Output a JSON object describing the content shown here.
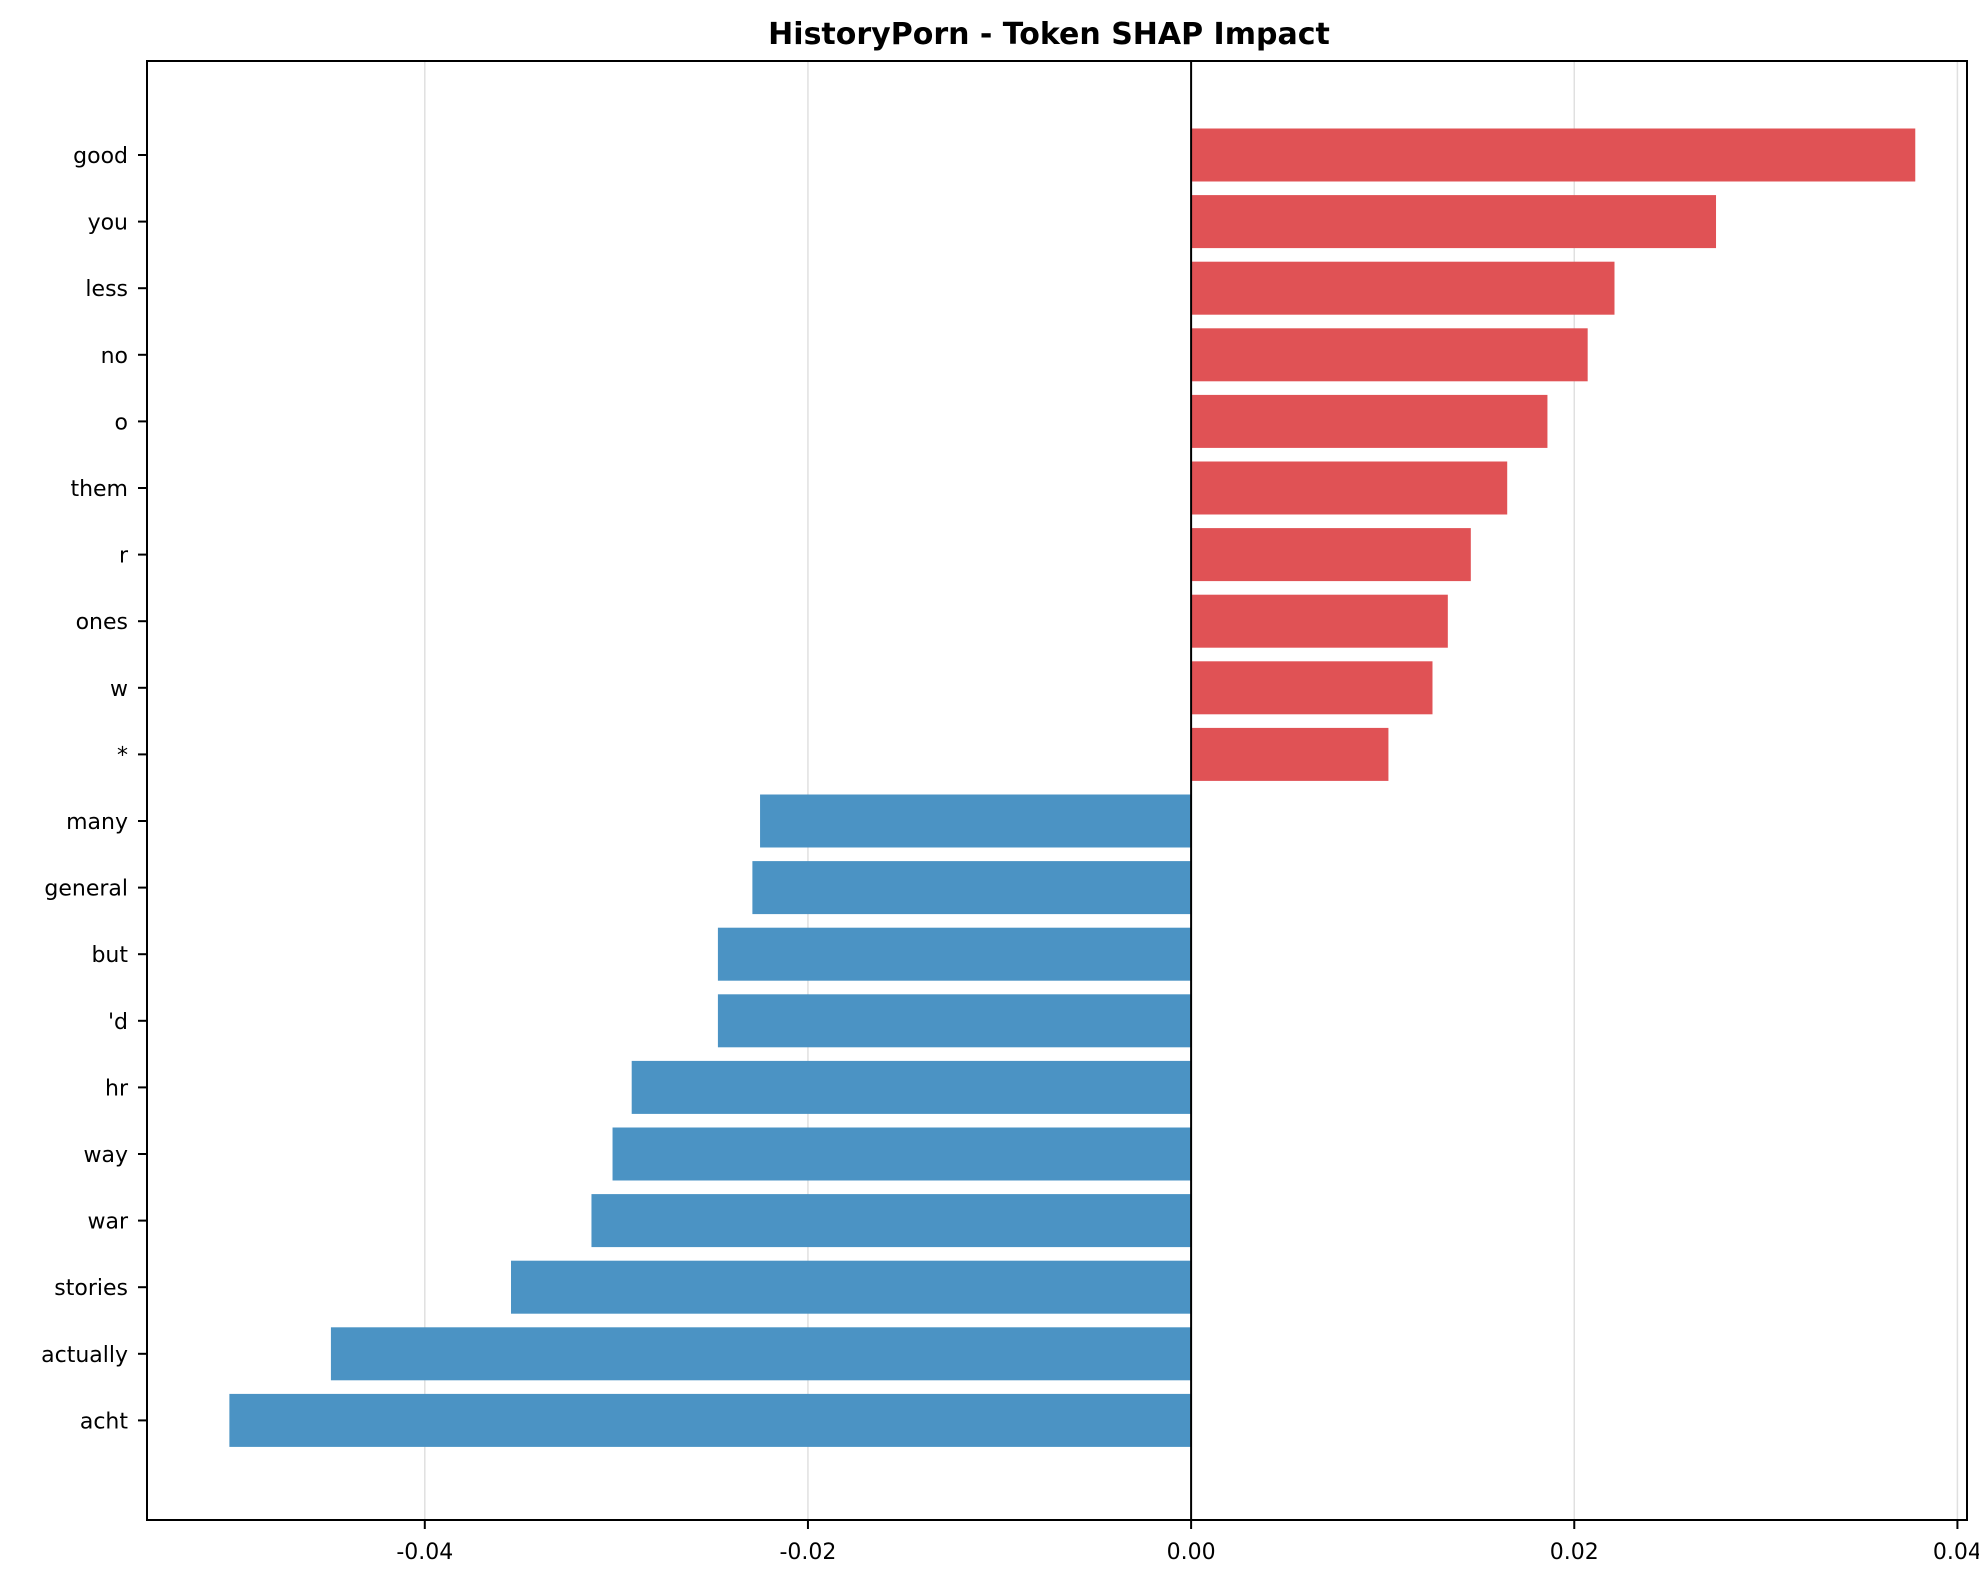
{
  "chart_data": {
    "type": "bar",
    "orientation": "horizontal",
    "title": "HistoryPorn - Token SHAP Impact",
    "xlabel": "",
    "ylabel": "",
    "xlim": [
      -0.0545,
      0.0405
    ],
    "xticks": [
      -0.04,
      -0.02,
      0.0,
      0.02,
      0.04
    ],
    "xtick_labels": [
      "-0.04",
      "-0.02",
      "0.00",
      "0.02",
      "0.04"
    ],
    "grid": "x",
    "categories": [
      "good",
      "you",
      "less",
      "no",
      "o",
      "them",
      "r",
      "ones",
      "w",
      "*",
      "many",
      "general",
      "but",
      "'d",
      "hr",
      "way",
      "war",
      "stories",
      "actually",
      "acht"
    ],
    "values": [
      0.0378,
      0.0274,
      0.0221,
      0.0207,
      0.0186,
      0.0165,
      0.0146,
      0.0134,
      0.0126,
      0.0103,
      -0.0225,
      -0.0229,
      -0.0247,
      -0.0247,
      -0.0292,
      -0.0302,
      -0.0313,
      -0.0355,
      -0.0449,
      -0.0502
    ],
    "colors": {
      "positive": "#e05255",
      "negative": "#4b93c4",
      "zero_line": "#000000",
      "grid": "#e0e0e0"
    }
  }
}
